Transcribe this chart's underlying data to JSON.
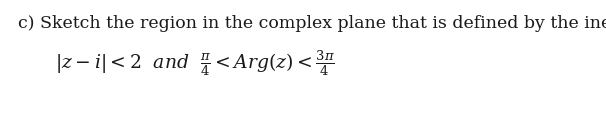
{
  "line1": "c) Sketch the region in the complex plane that is defined by the inequalities,",
  "line1_fontsize": 12.5,
  "line2_fontsize": 13.5,
  "background_color": "#ffffff",
  "text_color": "#1a1a1a",
  "figsize": [
    6.06,
    1.2
  ],
  "dpi": 100
}
